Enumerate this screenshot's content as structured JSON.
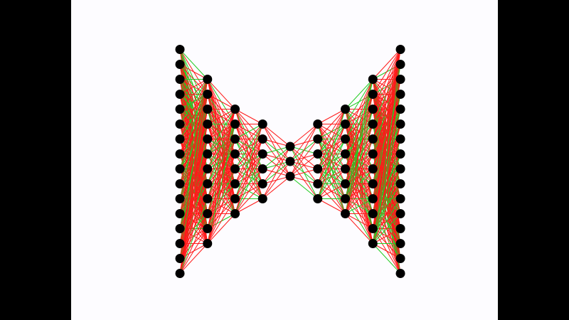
{
  "diagram": {
    "type": "autoencoder-network",
    "layers": [
      {
        "neurons": 16
      },
      {
        "neurons": 12
      },
      {
        "neurons": 8
      },
      {
        "neurons": 6
      },
      {
        "neurons": 3
      },
      {
        "neurons": 6
      },
      {
        "neurons": 8
      },
      {
        "neurons": 12
      },
      {
        "neurons": 16
      }
    ],
    "colors": {
      "positive_weight": "#22cc22",
      "negative_weight": "#ff1a1a",
      "neuron": "#000000",
      "background": "#fdfcff",
      "letterbox": "#000000"
    },
    "edge_color_pattern": [
      [
        "green",
        "red",
        "green",
        "green",
        "red",
        "green",
        "green",
        "green",
        "red",
        "green",
        "green",
        "red"
      ],
      [
        "red",
        "red",
        "green",
        "red",
        "red",
        "red",
        "green",
        "red",
        "green",
        "red",
        "red",
        "red"
      ],
      [
        "green",
        "red",
        "green",
        "red",
        "green",
        "red",
        "green",
        "green",
        "red",
        "red",
        "green",
        "red"
      ],
      [
        "red",
        "red",
        "red",
        "green",
        "red",
        "red",
        "green",
        "red",
        "red",
        "red",
        "red",
        "red"
      ],
      [
        "red",
        "green",
        "red",
        "green",
        "green",
        "red",
        "red",
        "green",
        "red",
        "red",
        "green",
        "red"
      ],
      [
        "green",
        "red",
        "red",
        "red",
        "green",
        "red",
        "red",
        "red",
        "red",
        "green",
        "red",
        "red"
      ],
      [
        "red",
        "green",
        "red",
        "red",
        "red",
        "red",
        "green",
        "red",
        "red",
        "red",
        "red",
        "red"
      ],
      [
        "red",
        "red",
        "red",
        "red",
        "red",
        "red",
        "red",
        "red",
        "green",
        "red",
        "red",
        "red"
      ]
    ]
  }
}
